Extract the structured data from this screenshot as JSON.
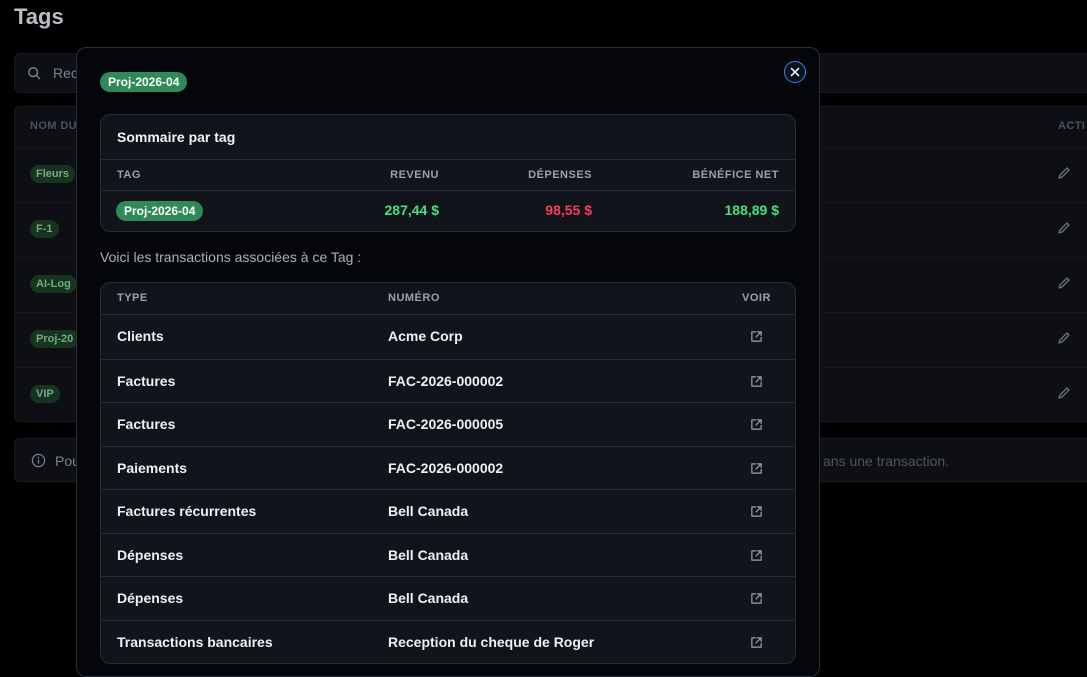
{
  "page": {
    "title": "Tags",
    "search_placeholder": "Rec",
    "columns": {
      "name": "NOM DU",
      "actions": "ACTI"
    },
    "tags": [
      "Fleurs",
      "F-1",
      "AI-Log",
      "Proj-20",
      "VIP"
    ],
    "info_left": "Pou",
    "info_right": "ans une transaction."
  },
  "modal": {
    "tag": "Proj-2026-04",
    "summary": {
      "title": "Sommaire par tag",
      "headers": {
        "tag": "TAG",
        "revenue": "REVENU",
        "expenses": "DÉPENSES",
        "net": "BÉNÉFICE NET"
      },
      "row": {
        "tag": "Proj-2026-04",
        "revenue": "287,44 $",
        "expenses": "98,55 $",
        "net": "188,89 $"
      }
    },
    "intro_text": "Voici les transactions associées à ce Tag :",
    "transactions": {
      "headers": {
        "type": "TYPE",
        "number": "NUMÉRO",
        "view": "VOIR"
      },
      "rows": [
        {
          "type": "Clients",
          "number": "Acme Corp"
        },
        {
          "type": "Factures",
          "number": "FAC-2026-000002"
        },
        {
          "type": "Factures",
          "number": "FAC-2026-000005"
        },
        {
          "type": "Paiements",
          "number": "FAC-2026-000002"
        },
        {
          "type": "Factures récurrentes",
          "number": "Bell Canada"
        },
        {
          "type": "Dépenses",
          "number": "Bell Canada"
        },
        {
          "type": "Dépenses",
          "number": "Bell Canada"
        },
        {
          "type": "Transactions bancaires",
          "number": "Reception du cheque de Roger"
        }
      ]
    }
  },
  "colors": {
    "tag_bg": "#2f8a57",
    "positive": "#4ade80",
    "negative": "#f43f5e",
    "accent": "#3b82f6"
  },
  "icons": {
    "search": "search-icon",
    "edit": "pencil-icon",
    "info": "info-icon",
    "close": "close-icon",
    "view": "external-link-icon"
  }
}
